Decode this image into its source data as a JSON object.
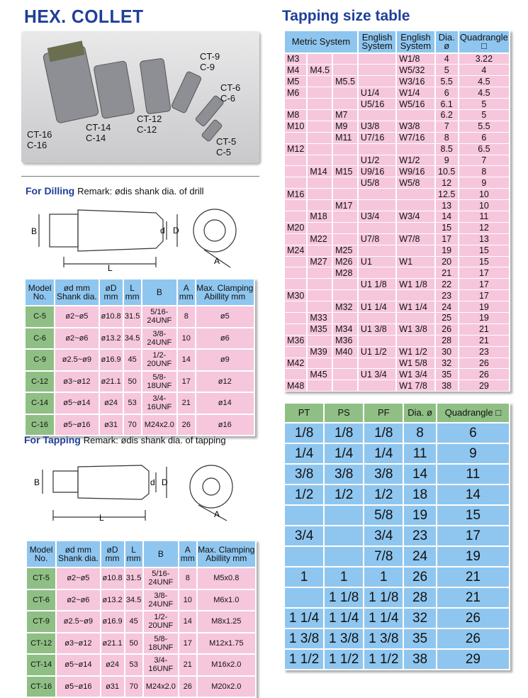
{
  "title": "HEX. COLLET",
  "photo_labels": [
    [
      "CT-16",
      "C-16"
    ],
    [
      "CT-14",
      "C-14"
    ],
    [
      "CT-12",
      "C-12"
    ],
    [
      "CT-9",
      "C-9"
    ],
    [
      "CT-6",
      "C-6"
    ],
    [
      "CT-5",
      "C-5"
    ]
  ],
  "drilling": {
    "heading": "For Dilling",
    "remark": "Remark: ødis shank dia. of drill",
    "dims": {
      "B": "B",
      "L": "L",
      "d": "d",
      "D": "D",
      "A": "A"
    },
    "headers": [
      "Model No.",
      "ød mm Shank dia.",
      "øD mm",
      "L mm",
      "B",
      "A mm",
      "Max. Clamping Abillity mm"
    ],
    "rows": [
      [
        "C-5",
        "ø2~ø5",
        "ø10.8",
        "31.5",
        "5/16-24UNF",
        "8",
        "ø5"
      ],
      [
        "C-6",
        "ø2~ø6",
        "ø13.2",
        "34.5",
        "3/8-24UNF",
        "10",
        "ø6"
      ],
      [
        "C-9",
        "ø2.5~ø9",
        "ø16.9",
        "45",
        "1/2-20UNF",
        "14",
        "ø9"
      ],
      [
        "C-12",
        "ø3~ø12",
        "ø21.1",
        "50",
        "5/8-18UNF",
        "17",
        "ø12"
      ],
      [
        "C-14",
        "ø5~ø14",
        "ø24",
        "53",
        "3/4-16UNF",
        "21",
        "ø14"
      ],
      [
        "C-16",
        "ø5~ø16",
        "ø31",
        "70",
        "M24x2.0",
        "26",
        "ø16"
      ]
    ]
  },
  "tapping": {
    "heading": "For Tapping",
    "remark": "Remark: ødis shank dia. of tapping",
    "dims": {
      "B": "B",
      "L": "L",
      "d": "d",
      "D": "D",
      "A": "A"
    },
    "headers": [
      "Model No.",
      "ød mm Shank dia.",
      "øD mm",
      "L mm",
      "B",
      "A mm",
      "Max. Clamping Abillity mm"
    ],
    "rows": [
      [
        "CT-5",
        "ø2~ø5",
        "ø10.8",
        "31.5",
        "5/16-24UNF",
        "8",
        "M5x0.8"
      ],
      [
        "CT-6",
        "ø2~ø6",
        "ø13.2",
        "34.5",
        "3/8-24UNF",
        "10",
        "M6x1.0"
      ],
      [
        "CT-9",
        "ø2.5~ø9",
        "ø16.9",
        "45",
        "1/2-20UNF",
        "14",
        "M8x1.25"
      ],
      [
        "CT-12",
        "ø3~ø12",
        "ø21.1",
        "50",
        "5/8-18UNF",
        "17",
        "M12x1.75"
      ],
      [
        "CT-14",
        "ø5~ø14",
        "ø24",
        "53",
        "3/4-16UNF",
        "21",
        "M16x2.0"
      ],
      [
        "CT-16",
        "ø5~ø16",
        "ø31",
        "70",
        "M24x2.0",
        "26",
        "M20x2.0"
      ]
    ]
  },
  "size_table": {
    "title": "Tapping size table",
    "headers": [
      "Metric System",
      "English System",
      "English System",
      "Dia. ø",
      "Quadrangle □"
    ],
    "rows": [
      [
        "M3",
        "",
        "",
        "",
        "W1/8",
        "4",
        "3.22"
      ],
      [
        "M4",
        "M4.5",
        "",
        "",
        "W5/32",
        "5",
        "4"
      ],
      [
        "M5",
        "",
        "M5.5",
        "",
        "W3/16",
        "5.5",
        "4.5"
      ],
      [
        "M6",
        "",
        "",
        "U1/4",
        "W1/4",
        "6",
        "4.5"
      ],
      [
        "",
        "",
        "",
        "U5/16",
        "W5/16",
        "6.1",
        "5"
      ],
      [
        "M8",
        "",
        "M7",
        "",
        "",
        "6.2",
        "5"
      ],
      [
        "M10",
        "",
        "M9",
        "U3/8",
        "W3/8",
        "7",
        "5.5"
      ],
      [
        "",
        "",
        "M11",
        "U7/16",
        "W7/16",
        "8",
        "6"
      ],
      [
        "M12",
        "",
        "",
        "",
        "",
        "8.5",
        "6.5"
      ],
      [
        "",
        "",
        "",
        "U1/2",
        "W1/2",
        "9",
        "7"
      ],
      [
        "",
        "M14",
        "M15",
        "U9/16",
        "W9/16",
        "10.5",
        "8"
      ],
      [
        "",
        "",
        "",
        "U5/8",
        "W5/8",
        "12",
        "9"
      ],
      [
        "M16",
        "",
        "",
        "",
        "",
        "12.5",
        "10"
      ],
      [
        "",
        "",
        "M17",
        "",
        "",
        "13",
        "10"
      ],
      [
        "",
        "M18",
        "",
        "U3/4",
        "W3/4",
        "14",
        "11"
      ],
      [
        "M20",
        "",
        "",
        "",
        "",
        "15",
        "12"
      ],
      [
        "",
        "M22",
        "",
        "U7/8",
        "W7/8",
        "17",
        "13"
      ],
      [
        "M24",
        "",
        "M25",
        "",
        "",
        "19",
        "15"
      ],
      [
        "",
        "M27",
        "M26",
        "U1",
        "W1",
        "20",
        "15"
      ],
      [
        "",
        "",
        "M28",
        "",
        "",
        "21",
        "17"
      ],
      [
        "",
        "",
        "",
        "U1 1/8",
        "W1 1/8",
        "22",
        "17"
      ],
      [
        "M30",
        "",
        "",
        "",
        "",
        "23",
        "17"
      ],
      [
        "",
        "",
        "M32",
        "U1 1/4",
        "W1 1/4",
        "24",
        "19"
      ],
      [
        "",
        "M33",
        "",
        "",
        "",
        "25",
        "19"
      ],
      [
        "",
        "M35",
        "M34",
        "U1 3/8",
        "W1 3/8",
        "26",
        "21"
      ],
      [
        "M36",
        "",
        "M36",
        "",
        "",
        "28",
        "21"
      ],
      [
        "",
        "M39",
        "M40",
        "U1 1/2",
        "W1 1/2",
        "30",
        "23"
      ],
      [
        "M42",
        "",
        "",
        "",
        "W1 5/8",
        "32",
        "26"
      ],
      [
        "",
        "M45",
        "",
        "U1 3/4",
        "W1 3/4",
        "35",
        "26"
      ],
      [
        "M48",
        "",
        "",
        "",
        "W1 7/8",
        "38",
        "29"
      ]
    ]
  },
  "pipe_table": {
    "headers": [
      "PT",
      "PS",
      "PF",
      "Dia. ø",
      "Quadrangle □"
    ],
    "rows": [
      [
        "1/8",
        "1/8",
        "1/8",
        "8",
        "6"
      ],
      [
        "1/4",
        "1/4",
        "1/4",
        "11",
        "9"
      ],
      [
        "3/8",
        "3/8",
        "3/8",
        "14",
        "11"
      ],
      [
        "1/2",
        "1/2",
        "1/2",
        "18",
        "14"
      ],
      [
        "",
        "",
        "5/8",
        "19",
        "15"
      ],
      [
        "3/4",
        "",
        "3/4",
        "23",
        "17"
      ],
      [
        "",
        "",
        "7/8",
        "24",
        "19"
      ],
      [
        "1",
        "1",
        "1",
        "26",
        "21"
      ],
      [
        "",
        "1 1/8",
        "1 1/8",
        "28",
        "21"
      ],
      [
        "1 1/4",
        "1 1/4",
        "1 1/4",
        "32",
        "26"
      ],
      [
        "1 3/8",
        "1 3/8",
        "1 3/8",
        "35",
        "26"
      ],
      [
        "1 1/2",
        "1 1/2",
        "1 1/2",
        "38",
        "29"
      ]
    ]
  }
}
